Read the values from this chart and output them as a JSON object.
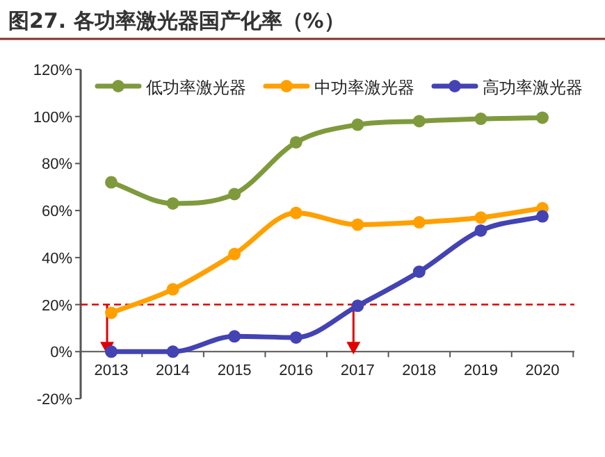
{
  "chart_data": {
    "type": "line",
    "title": "图27. 各功率激光器国产化率（%）",
    "categories": [
      "2013",
      "2014",
      "2015",
      "2016",
      "2017",
      "2018",
      "2019",
      "2020"
    ],
    "series": [
      {
        "name": "低功率激光器",
        "color": "#7f9a3c",
        "values": [
          72,
          63,
          67,
          89,
          96.5,
          98,
          99,
          99.5
        ]
      },
      {
        "name": "中功率激光器",
        "color": "#ffa000",
        "values": [
          16.5,
          26.5,
          41.5,
          59,
          54,
          55,
          57,
          61
        ]
      },
      {
        "name": "高功率激光器",
        "color": "#4343b4",
        "values": [
          0,
          0,
          6.5,
          6,
          19.5,
          34,
          51.5,
          57.5
        ]
      }
    ],
    "ylim": [
      -20,
      120
    ],
    "yticks": [
      {
        "value": -20,
        "label": "-20%"
      },
      {
        "value": 0,
        "label": "0%"
      },
      {
        "value": 20,
        "label": "20%"
      },
      {
        "value": 40,
        "label": "40%"
      },
      {
        "value": 60,
        "label": "60%"
      },
      {
        "value": 80,
        "label": "80%"
      },
      {
        "value": 100,
        "label": "100%"
      },
      {
        "value": 120,
        "label": "120%"
      }
    ],
    "ref_lines": [
      {
        "axis": "y",
        "value": 20,
        "color": "#e00000",
        "line_style": "dashed"
      }
    ],
    "marker": "circle",
    "line_style": "solid",
    "legend": "top",
    "grid": false
  }
}
